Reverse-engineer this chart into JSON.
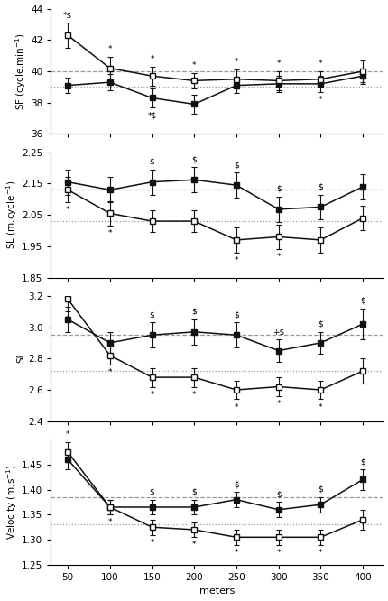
{
  "x": [
    50,
    100,
    150,
    200,
    250,
    300,
    350,
    400
  ],
  "sf_filled": [
    39.1,
    39.3,
    38.3,
    37.9,
    39.1,
    39.2,
    39.2,
    39.7
  ],
  "sf_filled_err": [
    0.5,
    0.5,
    0.6,
    0.6,
    0.5,
    0.5,
    0.5,
    0.5
  ],
  "sf_open": [
    42.3,
    40.2,
    39.7,
    39.4,
    39.5,
    39.4,
    39.5,
    40.0
  ],
  "sf_open_err": [
    0.8,
    0.7,
    0.6,
    0.5,
    0.6,
    0.6,
    0.5,
    0.7
  ],
  "sf_ref1": 40.0,
  "sf_ref2": 39.0,
  "sf_ylim": [
    36,
    44
  ],
  "sf_yticks": [
    36,
    38,
    40,
    42,
    44
  ],
  "sl_filled": [
    2.155,
    2.13,
    2.155,
    2.162,
    2.145,
    2.068,
    2.075,
    2.14
  ],
  "sl_filled_err": [
    0.04,
    0.04,
    0.04,
    0.04,
    0.04,
    0.04,
    0.04,
    0.04
  ],
  "sl_open": [
    2.13,
    2.055,
    2.03,
    2.03,
    1.97,
    1.98,
    1.97,
    2.04
  ],
  "sl_open_err": [
    0.04,
    0.04,
    0.035,
    0.035,
    0.04,
    0.04,
    0.04,
    0.04
  ],
  "sl_ref1": 2.13,
  "sl_ref2": 2.03,
  "sl_ylim": [
    1.85,
    2.25
  ],
  "sl_yticks": [
    1.85,
    1.95,
    2.05,
    2.15,
    2.25
  ],
  "si_filled": [
    3.05,
    2.9,
    2.95,
    2.97,
    2.95,
    2.85,
    2.9,
    3.02
  ],
  "si_filled_err": [
    0.08,
    0.07,
    0.08,
    0.08,
    0.08,
    0.07,
    0.07,
    0.1
  ],
  "si_open": [
    3.18,
    2.82,
    2.68,
    2.68,
    2.6,
    2.62,
    2.6,
    2.72
  ],
  "si_open_err": [
    0.08,
    0.06,
    0.06,
    0.06,
    0.06,
    0.06,
    0.06,
    0.08
  ],
  "si_ref1": 2.95,
  "si_ref2": 2.72,
  "si_ylim": [
    2.4,
    3.2
  ],
  "si_yticks": [
    2.4,
    2.6,
    2.8,
    3.0,
    3.2
  ],
  "vel_filled": [
    1.46,
    1.365,
    1.365,
    1.365,
    1.38,
    1.36,
    1.37,
    1.42
  ],
  "vel_filled_err": [
    0.02,
    0.015,
    0.015,
    0.015,
    0.015,
    0.015,
    0.015,
    0.02
  ],
  "vel_open": [
    1.475,
    1.365,
    1.325,
    1.32,
    1.305,
    1.305,
    1.305,
    1.34
  ],
  "vel_open_err": [
    0.02,
    0.015,
    0.015,
    0.015,
    0.015,
    0.015,
    0.015,
    0.02
  ],
  "vel_ref1": 1.385,
  "vel_ref2": 1.33,
  "vel_ylim": [
    1.25,
    1.5
  ],
  "vel_yticks": [
    1.25,
    1.3,
    1.35,
    1.4,
    1.45
  ],
  "xlabel": "meters",
  "xticks": [
    50,
    100,
    150,
    200,
    250,
    300,
    350,
    400
  ]
}
